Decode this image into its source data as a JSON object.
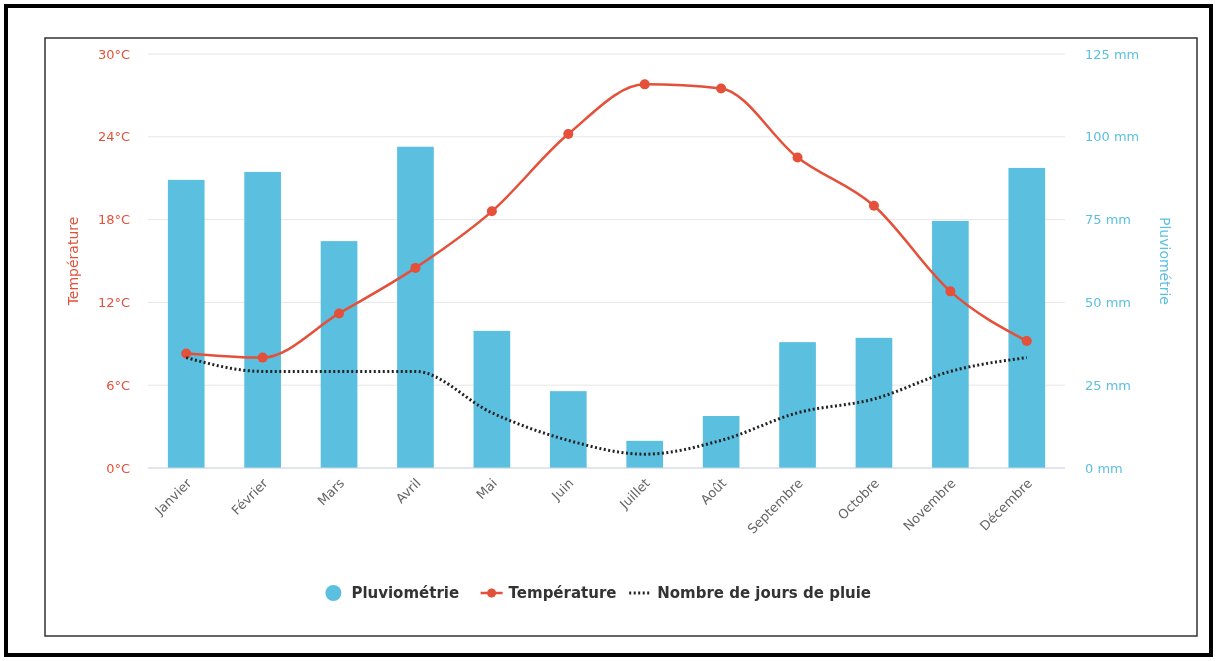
{
  "chart_data": {
    "type": "bar",
    "categories": [
      "Janvier",
      "Février",
      "Mars",
      "Avril",
      "Mai",
      "Juin",
      "Juillet",
      "Août",
      "Septembre",
      "Octobre",
      "Novembre",
      "Décembre"
    ],
    "series": [
      {
        "name": "Pluviométrie",
        "axis": "y2",
        "color": "#5bbfdf",
        "values": [
          87,
          89.4,
          68.5,
          97,
          41.4,
          23.2,
          8.2,
          15.7,
          38,
          39.3,
          74.6,
          90.6
        ]
      },
      {
        "name": "Température",
        "type": "line",
        "color": "#e4503a",
        "marker": "circle",
        "line_style": "solid",
        "values": [
          8.3,
          8.0,
          11.2,
          14.5,
          18.6,
          24.2,
          27.8,
          27.5,
          22.5,
          19.0,
          12.8,
          9.2
        ]
      },
      {
        "name": "Nombre de jours de pluie",
        "type": "line",
        "color": "#222222",
        "marker": "none",
        "line_style": "dotted",
        "values": [
          8,
          7,
          7,
          7,
          4,
          2,
          1,
          2,
          4,
          5,
          7,
          8
        ]
      }
    ],
    "ylabel": "Température",
    "y2label": "Pluviométrie",
    "ylim": [
      0,
      30
    ],
    "yticks": [
      {
        "value": 0,
        "label": "0°C"
      },
      {
        "value": 6,
        "label": "6°C"
      },
      {
        "value": 12,
        "label": "12°C"
      },
      {
        "value": 18,
        "label": "18°C"
      },
      {
        "value": 24,
        "label": "24°C"
      },
      {
        "value": 30,
        "label": "30°C"
      }
    ],
    "y2lim": [
      0,
      125
    ],
    "y2ticks": [
      {
        "value": 0,
        "label": "0 mm"
      },
      {
        "value": 25,
        "label": "25 mm"
      },
      {
        "value": 50,
        "label": "50 mm"
      },
      {
        "value": 75,
        "label": "75 mm"
      },
      {
        "value": 100,
        "label": "100 mm"
      },
      {
        "value": 125,
        "label": "125 mm"
      }
    ],
    "grid": "y",
    "legend": "bottom"
  }
}
